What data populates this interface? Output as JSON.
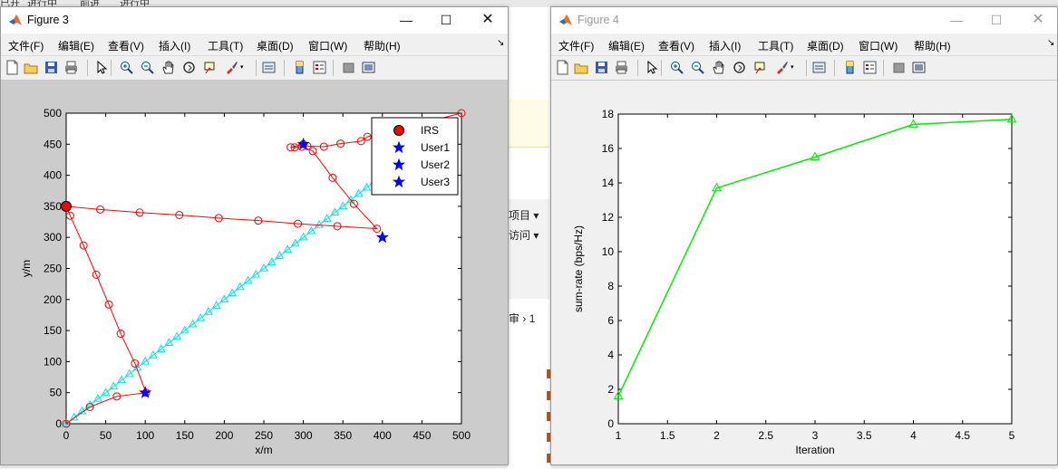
{
  "background": {
    "top_strip": [
      "已开",
      "进行中",
      "前进",
      "进行中"
    ],
    "panel_labels": [
      "项目",
      "访问"
    ],
    "breadcrumb": [
      "审",
      "1"
    ]
  },
  "windows": [
    {
      "title": "Figure 3",
      "menu": [
        "文件(F)",
        "编辑(E)",
        "查看(V)",
        "插入(I)",
        "工具(T)",
        "桌面(D)",
        "窗口(W)",
        "帮助(H)"
      ],
      "controls": [
        "minimize",
        "maximize",
        "close"
      ]
    },
    {
      "title": "Figure 4",
      "menu": [
        "文件(F)",
        "编辑(E)",
        "查看(V)",
        "插入(I)",
        "工具(T)",
        "桌面(D)",
        "窗口(W)",
        "帮助(H)"
      ],
      "controls": [
        "minimize",
        "maximize",
        "close"
      ]
    }
  ],
  "toolbar_icons": [
    "new-figure-icon",
    "open-file-icon",
    "save-icon",
    "print-icon",
    "select-arrow-icon",
    "zoom-in-icon",
    "zoom-out-icon",
    "pan-hand-icon",
    "rotate-3d-icon",
    "data-cursor-icon",
    "brush-icon",
    "link-plot-icon",
    "colorbar-icon",
    "legend-icon",
    "hide-plot-tools-icon",
    "show-plot-tools-icon"
  ],
  "colors": {
    "trajectory": "#ff0000",
    "diagonal": "#00e5ee",
    "irs_fill": "#ff0000",
    "user_star": "#0000ff",
    "sum_rate": "#00ee00",
    "figure_bg": "#cccccc"
  },
  "chart_data": [
    {
      "type": "line",
      "title": "",
      "xlabel": "x/m",
      "ylabel": "y/m",
      "xlim": [
        0,
        500
      ],
      "ylim": [
        0,
        500
      ],
      "xticks": [
        0,
        50,
        100,
        150,
        200,
        250,
        300,
        350,
        400,
        450,
        500
      ],
      "yticks": [
        0,
        50,
        100,
        150,
        200,
        250,
        300,
        350,
        400,
        450,
        500
      ],
      "grid": false,
      "legend": {
        "placement": "top-right",
        "entries": [
          "IRS",
          "User1",
          "User2",
          "User3"
        ]
      },
      "series": [
        {
          "style": "red-circle-line",
          "points": [
            [
              0,
              0
            ],
            [
              30,
              27
            ],
            [
              64,
              44
            ],
            [
              101,
              50
            ],
            [
              87,
              97
            ],
            [
              69,
              145
            ],
            [
              54,
              192
            ],
            [
              38,
              240
            ],
            [
              22,
              287
            ],
            [
              5,
              335
            ],
            [
              0,
              350
            ],
            [
              43,
              345
            ],
            [
              93,
              340
            ],
            [
              143,
              336
            ],
            [
              193,
              331
            ],
            [
              243,
              327
            ],
            [
              293,
              322
            ],
            [
              343,
              318
            ],
            [
              393,
              314
            ],
            [
              364,
              354
            ],
            [
              337,
              396
            ],
            [
              312,
              439
            ],
            [
              298,
              446
            ],
            [
              289,
              445
            ],
            [
              284,
              445
            ],
            [
              300,
              450
            ],
            [
              305,
              447
            ],
            [
              326,
              446
            ],
            [
              347,
              451
            ],
            [
              373,
              455
            ],
            [
              381,
              462
            ],
            [
              500,
              500
            ]
          ]
        },
        {
          "style": "cyan-triangle-line",
          "points": [
            [
              0,
              0
            ],
            [
              10,
              10
            ],
            [
              20,
              20
            ],
            [
              30,
              30
            ],
            [
              40,
              40
            ],
            [
              50,
              50
            ],
            [
              60,
              60
            ],
            [
              70,
              70
            ],
            [
              80,
              80
            ],
            [
              90,
              90
            ],
            [
              100,
              100
            ],
            [
              110,
              110
            ],
            [
              120,
              120
            ],
            [
              130,
              130
            ],
            [
              140,
              140
            ],
            [
              150,
              150
            ],
            [
              160,
              160
            ],
            [
              170,
              170
            ],
            [
              180,
              180
            ],
            [
              190,
              190
            ],
            [
              200,
              200
            ],
            [
              210,
              210
            ],
            [
              220,
              220
            ],
            [
              230,
              230
            ],
            [
              240,
              240
            ],
            [
              250,
              250
            ],
            [
              260,
              260
            ],
            [
              270,
              270
            ],
            [
              280,
              280
            ],
            [
              290,
              290
            ],
            [
              300,
              300
            ],
            [
              310,
              310
            ],
            [
              320,
              320
            ],
            [
              330,
              330
            ],
            [
              340,
              340
            ],
            [
              350,
              350
            ],
            [
              360,
              360
            ],
            [
              370,
              370
            ],
            [
              380,
              380
            ],
            [
              390,
              390
            ]
          ]
        },
        {
          "name": "IRS",
          "points": [
            [
              0,
              350
            ]
          ]
        },
        {
          "name": "User1",
          "points": [
            [
              300,
              450
            ]
          ]
        },
        {
          "name": "User2",
          "points": [
            [
              400,
              300
            ]
          ]
        },
        {
          "name": "User3",
          "points": [
            [
              100,
              50
            ]
          ]
        }
      ]
    },
    {
      "type": "line",
      "title": "",
      "xlabel": "Iteration",
      "ylabel": "sum-rate (bps/Hz)",
      "xlim": [
        1,
        5
      ],
      "ylim": [
        0,
        18
      ],
      "xticks": [
        1,
        1.5,
        2,
        2.5,
        3,
        3.5,
        4,
        4.5,
        5
      ],
      "yticks": [
        0,
        2,
        4,
        6,
        8,
        10,
        12,
        14,
        16,
        18
      ],
      "grid": false,
      "series": [
        {
          "x": [
            1,
            2,
            3,
            4,
            5
          ],
          "y": [
            1.6,
            13.7,
            15.5,
            17.4,
            17.7
          ]
        }
      ]
    }
  ]
}
